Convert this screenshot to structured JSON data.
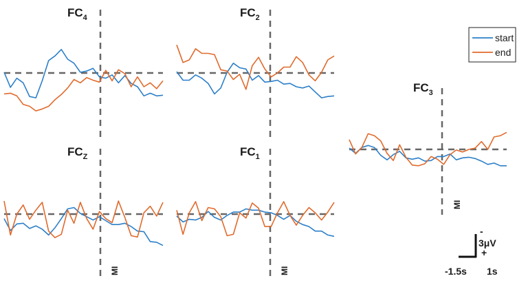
{
  "colors": {
    "start": "#2c7fc8",
    "end": "#e06a2c",
    "ref": "#666666"
  },
  "chart_data": [
    {
      "type": "line",
      "channel": "FC4",
      "title_main": "FC",
      "title_sub": "4",
      "event_label": "",
      "x": [
        -1.5,
        -1.4,
        -1.3,
        -1.2,
        -1.1,
        -1,
        -0.9,
        -0.8,
        -0.7,
        -0.6,
        -0.5,
        -0.4,
        -0.3,
        -0.2,
        -0.1,
        0,
        0.1,
        0.2,
        0.3,
        0.4,
        0.5,
        0.6,
        0.7,
        0.8,
        0.9,
        1
      ],
      "series": [
        {
          "name": "start",
          "values": [
            0.1,
            -2.2,
            -0.8,
            -1.5,
            -3.6,
            -3.8,
            -1.2,
            1.9,
            2.6,
            3.6,
            2.1,
            1.5,
            0.1,
            0.3,
            0.7,
            -0.6,
            -0.8,
            -0.3,
            -1.5,
            -0.4,
            -1.6,
            -2.1,
            -3.5,
            -3.1,
            -3.5,
            -3.4
          ]
        },
        {
          "name": "end",
          "values": [
            -3.2,
            -3.1,
            -3.5,
            -4.8,
            -5.1,
            -5.8,
            -5.5,
            -5.1,
            -4.1,
            -3.3,
            -2.3,
            -1.0,
            -1.5,
            -0.7,
            -1.1,
            -1.4,
            0.4,
            -1.2,
            0.5,
            -0.1,
            -2.1,
            -0.6,
            -2.1,
            -1.5,
            -2.4,
            -1.2
          ]
        }
      ],
      "ref_y": 0,
      "event_x": 0
    },
    {
      "type": "line",
      "channel": "FC2",
      "title_main": "FC",
      "title_sub": "2",
      "event_label": "",
      "x": [
        -1.5,
        -1.4,
        -1.3,
        -1.2,
        -1.1,
        -1,
        -0.9,
        -0.8,
        -0.7,
        -0.6,
        -0.5,
        -0.4,
        -0.3,
        -0.2,
        -0.1,
        0,
        0.1,
        0.2,
        0.3,
        0.4,
        0.5,
        0.6,
        0.7,
        0.8,
        0.9,
        1
      ],
      "series": [
        {
          "name": "start",
          "values": [
            0.2,
            -1.1,
            -1.1,
            -0.3,
            -0.8,
            -1.6,
            -3.2,
            -2.3,
            0.1,
            1.5,
            0.8,
            0.6,
            -1.1,
            -0.4,
            -1.4,
            -1.3,
            -1.1,
            -1.7,
            -1.6,
            -2.1,
            -2.3,
            -2.0,
            -2.9,
            -3.8,
            -3.6,
            -3.5
          ]
        },
        {
          "name": "end",
          "values": [
            4.3,
            1.6,
            2.0,
            3.7,
            3.0,
            3.0,
            2.8,
            0.5,
            0.3,
            -1.0,
            -0.2,
            -2.5,
            1.1,
            2.4,
            0.6,
            -0.6,
            0.0,
            0.9,
            0.9,
            2.5,
            1.6,
            -0.3,
            -1.2,
            0.1,
            2.0,
            2.6
          ]
        }
      ],
      "ref_y": 0,
      "event_x": 0
    },
    {
      "type": "line",
      "channel": "FC3",
      "title_main": "FC",
      "title_sub": "3",
      "event_label": "MI",
      "x": [
        -1.5,
        -1.4,
        -1.3,
        -1.2,
        -1.1,
        -1,
        -0.9,
        -0.8,
        -0.7,
        -0.6,
        -0.5,
        -0.4,
        -0.3,
        -0.2,
        -0.1,
        0,
        0.1,
        0.2,
        0.3,
        0.4,
        0.5,
        0.6,
        0.7,
        0.8,
        0.9,
        1
      ],
      "series": [
        {
          "name": "start",
          "values": [
            0.2,
            -0.6,
            0.3,
            0.6,
            0.3,
            -0.9,
            -1.6,
            -0.8,
            -0.3,
            -1.3,
            -1.5,
            -1.3,
            -1.8,
            -1.7,
            -1.1,
            -1.1,
            -0.7,
            -1.6,
            -1.3,
            -1.2,
            -1.4,
            -1.8,
            -2.3,
            -2.1,
            -2.5,
            -2.5
          ]
        },
        {
          "name": "end",
          "values": [
            1.5,
            -0.7,
            0.3,
            2.4,
            2.1,
            1.3,
            -0.6,
            -1.7,
            0.7,
            -1.2,
            -2.4,
            -2.5,
            -2.2,
            -1.1,
            -1.5,
            -2.3,
            -0.8,
            -0.1,
            -0.4,
            0.0,
            0.2,
            1.2,
            0.0,
            1.9,
            2.1,
            2.6
          ]
        }
      ],
      "ref_y": 0,
      "event_x": 0
    },
    {
      "type": "line",
      "channel": "FCZ",
      "title_main": "FC",
      "title_sub": "Z",
      "event_label": "MI",
      "x": [
        -1.5,
        -1.4,
        -1.3,
        -1.2,
        -1.1,
        -1,
        -0.9,
        -0.8,
        -0.7,
        -0.6,
        -0.5,
        -0.4,
        -0.3,
        -0.2,
        -0.1,
        0,
        0.1,
        0.2,
        0.3,
        0.4,
        0.5,
        0.6,
        0.7,
        0.8,
        0.9,
        1
      ],
      "series": [
        {
          "name": "start",
          "values": [
            -0.7,
            -2.5,
            -1.5,
            -1.4,
            -2.2,
            -1.8,
            -2.3,
            -3.2,
            -2.1,
            -0.7,
            0.8,
            1.0,
            0.1,
            -0.4,
            -0.9,
            -0.4,
            -1.0,
            -1.6,
            -1.6,
            -1.4,
            -1.9,
            -2.6,
            -2.7,
            -4.2,
            -4.3,
            -4.8
          ]
        },
        {
          "name": "end",
          "values": [
            2.0,
            -3.2,
            0.0,
            1.4,
            -0.8,
            0.6,
            1.8,
            -2.6,
            -3.6,
            -3.1,
            0.6,
            -1.4,
            1.8,
            -0.7,
            -2.3,
            0.4,
            -0.7,
            -1.3,
            2.0,
            -0.5,
            -3.3,
            -3.5,
            0.2,
            1.2,
            -0.3,
            1.8
          ]
        }
      ],
      "ref_y": 0,
      "event_x": 0
    },
    {
      "type": "line",
      "channel": "FC1",
      "title_main": "FC",
      "title_sub": "1",
      "event_label": "MI",
      "x": [
        -1.5,
        -1.4,
        -1.3,
        -1.2,
        -1.1,
        -1,
        -0.9,
        -0.8,
        -0.7,
        -0.6,
        -0.5,
        -0.4,
        -0.3,
        -0.2,
        -0.1,
        0,
        0.1,
        0.2,
        0.3,
        0.4,
        0.5,
        0.6,
        0.7,
        0.8,
        0.9,
        1
      ],
      "series": [
        {
          "name": "start",
          "values": [
            -0.3,
            -1.2,
            -0.8,
            -0.9,
            -0.5,
            0.4,
            -0.5,
            -0.9,
            -0.2,
            0.3,
            0.3,
            0.8,
            0.6,
            0.6,
            0.3,
            0.2,
            -0.2,
            -0.8,
            -0.2,
            -1.1,
            -1.6,
            -1.9,
            -2.6,
            -2.6,
            -3.2,
            -3.4
          ]
        },
        {
          "name": "end",
          "values": [
            0.6,
            -3.1,
            0.2,
            1.9,
            -1.0,
            1.0,
            0.8,
            -0.4,
            -3.3,
            -3.1,
            0.2,
            -0.6,
            1.7,
            0.9,
            -1.9,
            -1.9,
            0.2,
            1.9,
            -0.2,
            -1.7,
            -0.2,
            1.0,
            0.2,
            -0.9,
            0.3,
            1.8
          ]
        }
      ],
      "ref_y": 0,
      "event_x": 0
    }
  ],
  "legend": {
    "items": [
      {
        "name": "start",
        "label": "start"
      },
      {
        "name": "end",
        "label": "end"
      }
    ]
  },
  "scale_bar": {
    "amplitude_label": "3μV",
    "neg_sign": "-",
    "pos_sign": "+",
    "time_start_label": "-1.5s",
    "time_end_label": "1s"
  }
}
